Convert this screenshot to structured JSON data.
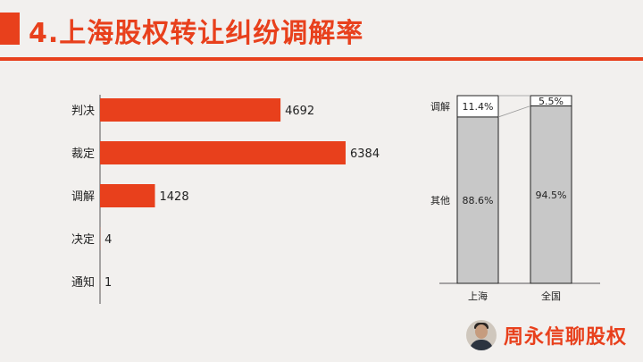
{
  "header": {
    "title": "4.上海股权转让纠纷调解率"
  },
  "brand": {
    "name": "周永信聊股权",
    "icon": "avatar-photo"
  },
  "colors": {
    "accent": "#e8401c",
    "stack_gray": "#c8c8c8"
  },
  "chart_data": [
    {
      "type": "bar",
      "orientation": "horizontal",
      "categories": [
        "判决",
        "裁定",
        "调解",
        "决定",
        "通知"
      ],
      "values": [
        4692,
        6384,
        1428,
        4,
        1
      ],
      "xlim": [
        0,
        7000
      ]
    },
    {
      "type": "bar",
      "stacked": true,
      "percent": true,
      "categories": [
        "上海",
        "全国"
      ],
      "series": [
        {
          "name": "调解",
          "values": [
            11.4,
            5.5
          ],
          "labels": [
            "11.4%",
            "5.5%"
          ]
        },
        {
          "name": "其他",
          "values": [
            88.6,
            94.5
          ],
          "labels": [
            "88.6%",
            "94.5%"
          ]
        }
      ],
      "ylim": [
        0,
        100
      ]
    }
  ]
}
